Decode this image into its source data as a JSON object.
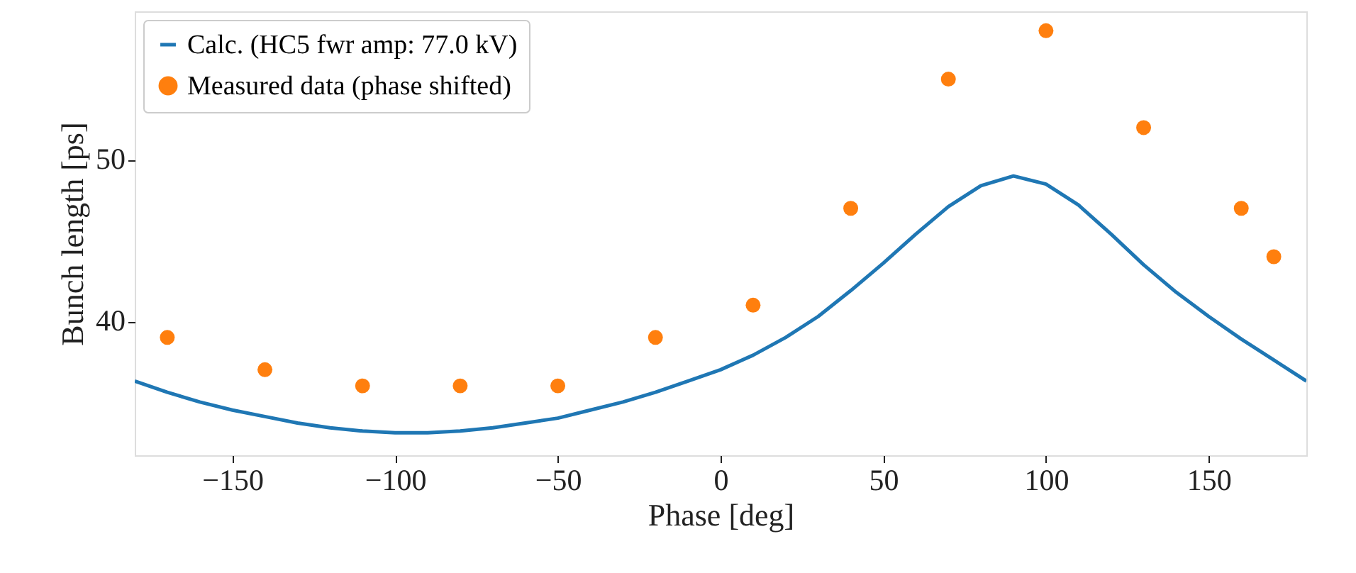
{
  "chart_data": {
    "type": "line",
    "xlabel": "Phase [deg]",
    "ylabel": "Bunch length [ps]",
    "xlim": [
      -180,
      180
    ],
    "xticks": [
      -150,
      -100,
      -50,
      0,
      50,
      100,
      150
    ],
    "ylim": [
      31.7,
      59.2
    ],
    "yticks": [
      40,
      50
    ],
    "grid": false,
    "legend": "top left",
    "series": [
      {
        "name": "Calc. (HC5 fwr amp: 77.0 kV)",
        "type": "line",
        "color": "#1f77b4",
        "marker": "none",
        "line_style": "solid",
        "x": [
          -180,
          -170,
          -160,
          -150,
          -140,
          -130,
          -120,
          -110,
          -100,
          -90,
          -80,
          -70,
          -60,
          -50,
          -40,
          -30,
          -20,
          -10,
          0,
          10,
          20,
          30,
          40,
          50,
          60,
          70,
          80,
          90,
          100,
          110,
          120,
          130,
          140,
          150,
          160,
          170,
          180
        ],
        "values": [
          36.3,
          35.6,
          35.0,
          34.5,
          34.1,
          33.7,
          33.4,
          33.2,
          33.1,
          33.1,
          33.2,
          33.4,
          33.7,
          34.0,
          34.5,
          35.0,
          35.6,
          36.3,
          37.0,
          37.9,
          39.0,
          40.3,
          41.9,
          43.6,
          45.4,
          47.1,
          48.4,
          49.0,
          48.5,
          47.2,
          45.4,
          43.5,
          41.8,
          40.3,
          38.9,
          37.6,
          36.3
        ]
      },
      {
        "name": "Measured data (phase shifted)",
        "type": "scatter",
        "color": "#ff7f0e",
        "marker": "circle",
        "x": [
          -170,
          -140,
          -110,
          -80,
          -50,
          -20,
          10,
          40,
          70,
          100,
          130,
          160,
          170
        ],
        "values": [
          39,
          37,
          36,
          36,
          36,
          39,
          41,
          47,
          55,
          58,
          52,
          47,
          44
        ]
      }
    ]
  }
}
